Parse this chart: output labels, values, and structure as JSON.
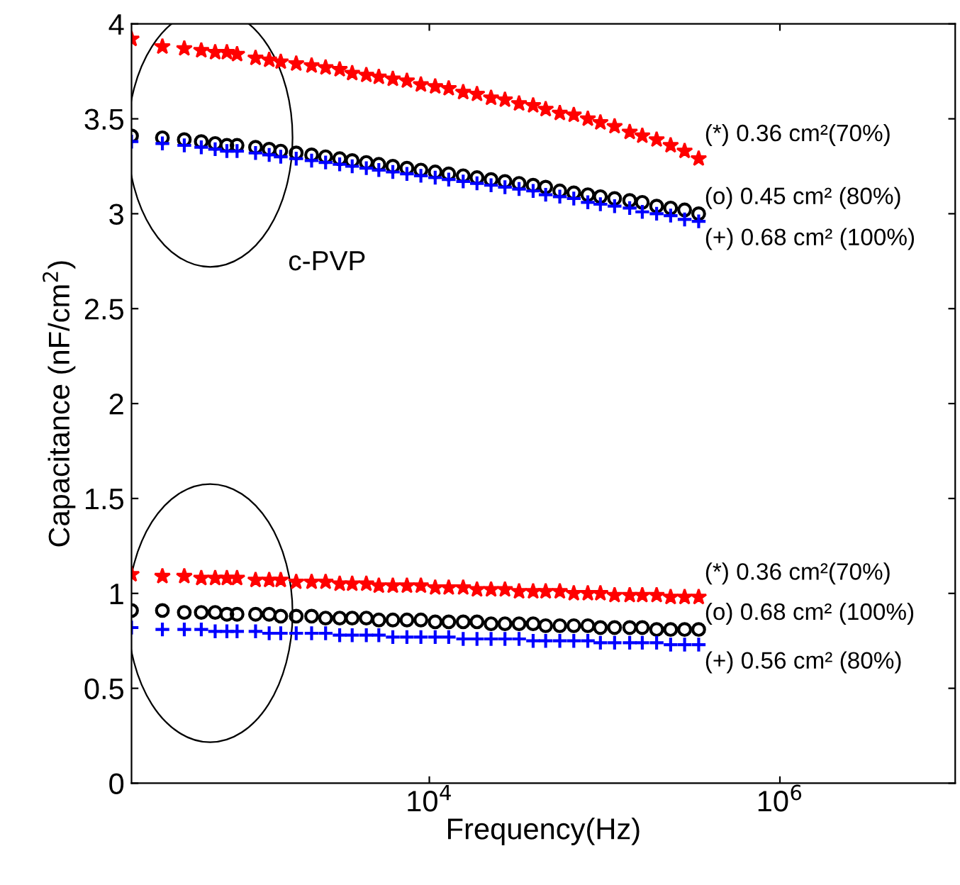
{
  "chart_data": {
    "type": "scatter",
    "xlabel": "Frequency(Hz)",
    "ylabel": "Capacitance (nF/cm$^{2}$)",
    "log": "x",
    "xlim": [
      200,
      10000000
    ],
    "ylim": [
      0,
      4
    ],
    "xticks": [
      {
        "value": 10000,
        "label": "10$^{4}$"
      },
      {
        "value": 1000000,
        "label": "10$^{6}$"
      }
    ],
    "yticks": [
      0,
      0.5,
      1,
      1.5,
      2,
      2.5,
      3,
      3.5,
      4
    ],
    "grid": false,
    "legend": "right",
    "annotations": [
      "c-PVP"
    ],
    "x": [
      200,
      300,
      400,
      500,
      600,
      700,
      800,
      1020,
      1220,
      1420,
      1740,
      2130,
      2560,
      3080,
      3630,
      4370,
      5150,
      6190,
      7450,
      8950,
      10800,
      12900,
      15600,
      18700,
      22500,
      27000,
      32500,
      39100,
      46100,
      55500,
      66700,
      80200,
      94600,
      114000,
      139000,
      164000,
      198000,
      238000,
      286000,
      344000
    ],
    "series": [
      {
        "name": "(*) 0.36 cm²(70%)",
        "color": "#ff0000",
        "marker": "star",
        "values": [
          3.92,
          3.88,
          3.87,
          3.86,
          3.85,
          3.85,
          3.84,
          3.82,
          3.81,
          3.8,
          3.79,
          3.78,
          3.77,
          3.76,
          3.74,
          3.73,
          3.72,
          3.71,
          3.7,
          3.68,
          3.67,
          3.66,
          3.64,
          3.63,
          3.61,
          3.6,
          3.58,
          3.57,
          3.55,
          3.53,
          3.52,
          3.5,
          3.48,
          3.46,
          3.43,
          3.41,
          3.39,
          3.36,
          3.33,
          3.29
        ]
      },
      {
        "name": "(o) 0.45 cm² (80%)",
        "color": "#000000",
        "marker": "circle",
        "values": [
          3.41,
          3.4,
          3.39,
          3.38,
          3.37,
          3.36,
          3.36,
          3.35,
          3.34,
          3.33,
          3.32,
          3.31,
          3.3,
          3.29,
          3.28,
          3.27,
          3.26,
          3.25,
          3.24,
          3.23,
          3.22,
          3.21,
          3.2,
          3.19,
          3.18,
          3.17,
          3.16,
          3.15,
          3.14,
          3.12,
          3.11,
          3.1,
          3.09,
          3.08,
          3.07,
          3.06,
          3.04,
          3.03,
          3.02,
          3.0
        ]
      },
      {
        "name": "(+) 0.68 cm² (100%)",
        "color": "#0000ff",
        "marker": "cross",
        "values": [
          3.38,
          3.37,
          3.36,
          3.35,
          3.34,
          3.33,
          3.33,
          3.32,
          3.31,
          3.3,
          3.29,
          3.28,
          3.27,
          3.26,
          3.25,
          3.24,
          3.23,
          3.22,
          3.21,
          3.2,
          3.19,
          3.18,
          3.17,
          3.16,
          3.15,
          3.14,
          3.13,
          3.12,
          3.1,
          3.09,
          3.08,
          3.06,
          3.05,
          3.04,
          3.03,
          3.01,
          3.0,
          2.99,
          2.97,
          2.96
        ]
      },
      {
        "name": "(*) 0.36 cm²(70%)",
        "color": "#ff0000",
        "marker": "star",
        "values": [
          1.1,
          1.09,
          1.09,
          1.08,
          1.08,
          1.08,
          1.08,
          1.07,
          1.07,
          1.07,
          1.06,
          1.06,
          1.06,
          1.05,
          1.05,
          1.05,
          1.04,
          1.04,
          1.04,
          1.04,
          1.03,
          1.03,
          1.03,
          1.02,
          1.02,
          1.02,
          1.01,
          1.01,
          1.01,
          1.01,
          1.0,
          1.0,
          1.0,
          0.99,
          0.99,
          0.99,
          0.99,
          0.98,
          0.98,
          0.98
        ]
      },
      {
        "name": "(o) 0.68 cm² (100%)",
        "color": "#000000",
        "marker": "circle",
        "values": [
          0.91,
          0.91,
          0.9,
          0.9,
          0.9,
          0.89,
          0.89,
          0.89,
          0.89,
          0.88,
          0.88,
          0.88,
          0.87,
          0.87,
          0.87,
          0.87,
          0.86,
          0.86,
          0.86,
          0.86,
          0.85,
          0.85,
          0.85,
          0.85,
          0.84,
          0.84,
          0.84,
          0.84,
          0.83,
          0.83,
          0.83,
          0.83,
          0.82,
          0.82,
          0.82,
          0.82,
          0.81,
          0.81,
          0.81,
          0.81
        ]
      },
      {
        "name": "(+) 0.56 cm² (80%)",
        "color": "#0000ff",
        "marker": "cross",
        "values": [
          0.82,
          0.81,
          0.81,
          0.81,
          0.8,
          0.8,
          0.8,
          0.8,
          0.79,
          0.79,
          0.79,
          0.79,
          0.79,
          0.78,
          0.78,
          0.78,
          0.78,
          0.77,
          0.77,
          0.77,
          0.77,
          0.77,
          0.76,
          0.76,
          0.76,
          0.76,
          0.76,
          0.75,
          0.75,
          0.75,
          0.75,
          0.75,
          0.74,
          0.74,
          0.74,
          0.74,
          0.74,
          0.73,
          0.73,
          0.73
        ]
      }
    ]
  }
}
